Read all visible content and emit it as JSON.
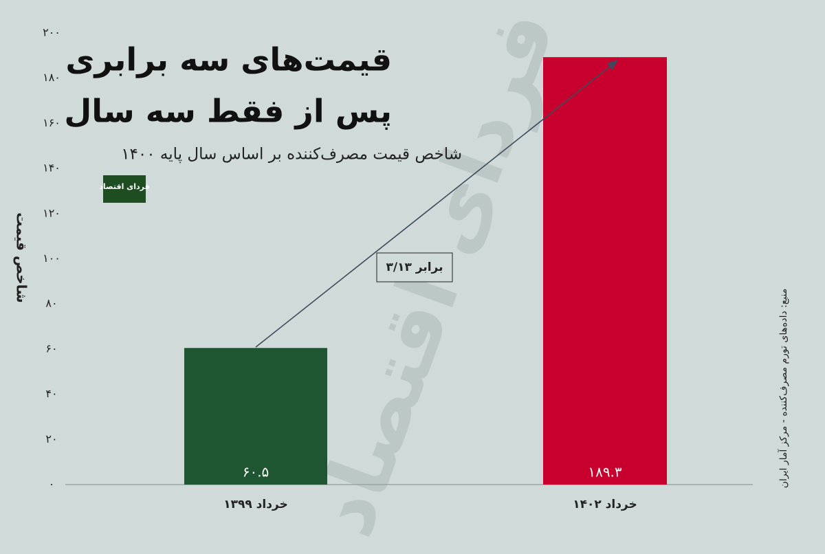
{
  "chart_data": {
    "type": "bar",
    "title": [
      "قیمت‌های سه برابری",
      "پس از فقط سه سال"
    ],
    "subtitle": "شاخص قیمت مصرف‌کننده بر اساس سال پایه ۱۴۰۰",
    "ylabel": "شاخص قیمت",
    "source": "منبع: داده‌های تورم مصرف‌کننده - مرکز آمار ایران",
    "annotation": "۳/۱۳ برابر",
    "logo": "فردای اقتصاد",
    "watermark": "فردای اقتصاد",
    "categories": [
      "خرداد ۱۳۹۹",
      "خرداد ۱۴۰۲"
    ],
    "values": [
      60.5,
      189.3
    ],
    "value_labels": [
      "۶۰.۵",
      "۱۸۹.۳"
    ],
    "colors": [
      "#1e5631",
      "#c8002d"
    ],
    "ylim": [
      0,
      200
    ],
    "yticks": [
      {
        "value": 0,
        "label": "۰"
      },
      {
        "value": 20,
        "label": "۲۰"
      },
      {
        "value": 40,
        "label": "۴۰"
      },
      {
        "value": 60,
        "label": "۶۰"
      },
      {
        "value": 80,
        "label": "۸۰"
      },
      {
        "value": 100,
        "label": "۱۰۰"
      },
      {
        "value": 120,
        "label": "۱۲۰"
      },
      {
        "value": 140,
        "label": "۱۴۰"
      },
      {
        "value": 160,
        "label": "۱۶۰"
      },
      {
        "value": 180,
        "label": "۱۸۰"
      },
      {
        "value": 200,
        "label": "۲۰۰"
      }
    ],
    "grid": false
  }
}
